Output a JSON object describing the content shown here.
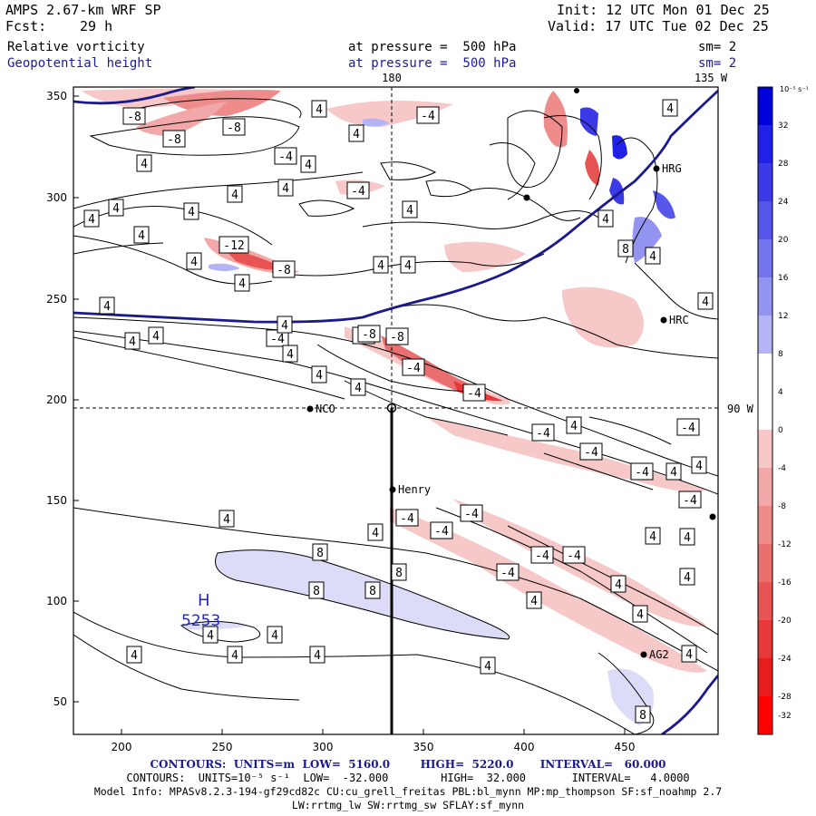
{
  "header": {
    "model": "AMPS 2.67-km WRF SP",
    "init": "Init: 12 UTC Mon 01 Dec 25",
    "fcst_label": "Fcst:",
    "fcst_value": "29 h",
    "valid": "Valid: 17 UTC Tue 02 Dec 25",
    "field1": "Relative vorticity",
    "field1_level": "at pressure =  500 hPa",
    "field1_sm": "sm= 2",
    "field2": "Geopotential height",
    "field2_level": "at pressure =  500 hPa",
    "field2_sm": "sm= 2"
  },
  "map": {
    "lon_label_180": "180",
    "lon_label_135w": "135 W",
    "lon_label_90w": "90 W",
    "x_ticks": [
      "200",
      "250",
      "300",
      "350",
      "400",
      "450"
    ],
    "y_ticks": [
      "350",
      "300",
      "250",
      "200",
      "150",
      "100",
      "50"
    ],
    "high_symbol": "H",
    "high_value": "5253",
    "stations": [
      {
        "name": "NCO"
      },
      {
        "name": "Henry"
      },
      {
        "name": "HRC"
      },
      {
        "name": "AG2"
      },
      {
        "name": "HRG"
      }
    ],
    "contour_labels": [
      "-8",
      "-8",
      "-8",
      "-4",
      "-4",
      "-4",
      "-4",
      "-4",
      "-8",
      "-8",
      "-8",
      "-12",
      "-4",
      "-4",
      "-4",
      "-4",
      "-4",
      "-4",
      "-4",
      "-4",
      "-4",
      "-4",
      "-4",
      "-4",
      "-4",
      "4",
      "4",
      "4",
      "4",
      "4",
      "4",
      "4",
      "4",
      "4",
      "4",
      "4",
      "4",
      "4",
      "4",
      "4",
      "4",
      "4",
      "4",
      "4",
      "4",
      "4",
      "4",
      "4",
      "4",
      "4",
      "4",
      "4",
      "4",
      "4",
      "4",
      "4",
      "4",
      "8",
      "8",
      "8",
      "8",
      "8",
      "8"
    ]
  },
  "colorbar": {
    "units": "10⁻⁵ s⁻¹",
    "ticks": [
      "32",
      "28",
      "24",
      "20",
      "16",
      "12",
      "8",
      "4",
      "0",
      "-4",
      "-8",
      "-12",
      "-16",
      "-20",
      "-24",
      "-28",
      "-32"
    ],
    "colors": [
      "#0000dd",
      "#2020e8",
      "#3a3ae8",
      "#5656ea",
      "#7474ee",
      "#9393f2",
      "#b3b3f6",
      "#ffffff",
      "#ffffff",
      "#f6c8c8",
      "#f2a8a8",
      "#ee8c8c",
      "#ea7070",
      "#e85454",
      "#e83838",
      "#e81c1c",
      "#ff0000"
    ]
  },
  "footer": {
    "line1": "CONTOURS:  UNITS=m  LOW=  5160.0        HIGH=  5220.0       INTERVAL=   60.000",
    "line2": "CONTOURS:  UNITS=10⁻⁵ s⁻¹  LOW=  -32.000        HIGH=  32.000       INTERVAL=   4.0000",
    "line3": "Model Info: MPASv8.2.3-194-gf29cd82c CU:cu_grell_freitas PBL:bl_mynn MP:mp_thompson SF:sf_noahmp 2.7",
    "line4": "LW:rrtmg_lw SW:rrtmg_sw SFLAY:sf_mynn"
  }
}
